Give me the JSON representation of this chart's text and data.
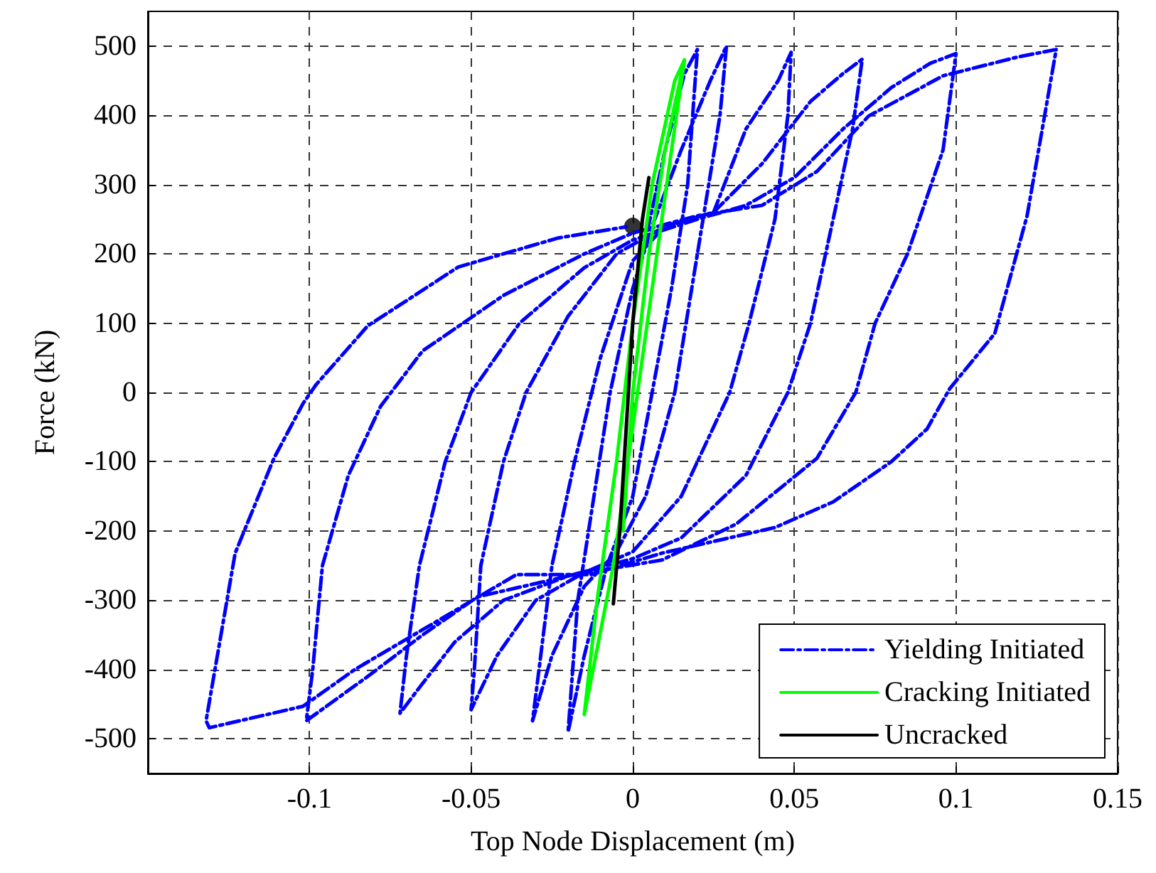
{
  "chart_data": {
    "type": "line",
    "xlabel": "Top Node Displacement (m)",
    "ylabel": "Force (kN)",
    "xlim": [
      -0.15,
      0.15
    ],
    "xticks": [
      -0.1,
      -0.05,
      0,
      0.05,
      0.1,
      0.15
    ],
    "ylim": [
      -550,
      550
    ],
    "yticks": [
      -500,
      -400,
      -300,
      -200,
      -100,
      0,
      100,
      200,
      300,
      400,
      500
    ],
    "grid": true,
    "legend": "bottom right",
    "marker": "none",
    "series": [
      {
        "name": "Yielding Initiated",
        "color": "#0000ff",
        "line_style": "dashdot",
        "x": [
          0.003,
          0.01,
          0.016,
          0.02,
          0.017,
          0.012,
          0.006,
          0,
          -0.008,
          -0.015,
          -0.02,
          -0.017,
          -0.012,
          -0.007,
          0,
          0.006,
          0.015,
          0.024,
          0.029,
          0.027,
          0.02,
          0.013,
          0.004,
          -0.005,
          -0.015,
          -0.025,
          -0.031,
          -0.029,
          -0.025,
          -0.018,
          -0.01,
          0,
          0.01,
          0.025,
          0.035,
          0.045,
          0.049,
          0.048,
          0.044,
          0.036,
          0.03,
          0.015,
          0,
          -0.015,
          -0.03,
          -0.042,
          -0.05,
          -0.049,
          -0.047,
          -0.04,
          -0.033,
          -0.02,
          -0.005,
          0.01,
          0.025,
          0.04,
          0.055,
          0.065,
          0.071,
          0.068,
          0.062,
          0.055,
          0.048,
          0.035,
          0.015,
          0,
          -0.02,
          -0.04,
          -0.055,
          -0.065,
          -0.072,
          -0.07,
          -0.066,
          -0.058,
          -0.05,
          -0.035,
          -0.015,
          0,
          0.02,
          0.035,
          0.05,
          0.065,
          0.08,
          0.092,
          0.1,
          0.096,
          0.085,
          0.075,
          0.069,
          0.057,
          0.032,
          0.009,
          -0.018,
          -0.048,
          -0.065,
          -0.082,
          -0.101,
          -0.099,
          -0.096,
          -0.088,
          -0.078,
          -0.065,
          -0.04,
          -0.015,
          0,
          0.02,
          0.04,
          0.057,
          0.073,
          0.096,
          0.119,
          0.131,
          0.122,
          0.112,
          0.098,
          0.091,
          0.08,
          0.062,
          0.044,
          0.009,
          -0.013,
          -0.036,
          -0.059,
          -0.086,
          -0.102,
          -0.131,
          -0.132,
          -0.123,
          -0.111,
          -0.102,
          -0.098,
          -0.082,
          -0.054,
          -0.023,
          -0.002
        ],
        "values": [
          200,
          350,
          460,
          495,
          300,
          150,
          0,
          -150,
          -250,
          -380,
          -490,
          -300,
          -150,
          0,
          150,
          240,
          350,
          450,
          500,
          400,
          200,
          0,
          -150,
          -230,
          -280,
          -380,
          -474,
          -400,
          -250,
          -100,
          50,
          190,
          240,
          260,
          380,
          450,
          491,
          400,
          250,
          100,
          0,
          -150,
          -230,
          -260,
          -300,
          -380,
          -458,
          -400,
          -250,
          -100,
          0,
          110,
          200,
          240,
          260,
          330,
          420,
          460,
          481,
          380,
          250,
          100,
          0,
          -120,
          -210,
          -240,
          -265,
          -300,
          -360,
          -420,
          -463,
          -380,
          -250,
          -100,
          0,
          100,
          180,
          220,
          250,
          270,
          310,
          380,
          440,
          475,
          489,
          350,
          200,
          100,
          0,
          -95,
          -190,
          -242,
          -263,
          -295,
          -350,
          -410,
          -474,
          -400,
          -250,
          -120,
          -20,
          60,
          140,
          200,
          230,
          255,
          270,
          319,
          399,
          457,
          484,
          495,
          255,
          85,
          5,
          -53,
          -100,
          -158,
          -195,
          -232,
          -263,
          -263,
          -326,
          -400,
          -453,
          -484,
          -474,
          -232,
          -95,
          -16,
          11,
          96,
          181,
          223,
          239
        ]
      },
      {
        "name": "Cracking Initiated",
        "color": "#00ff00",
        "line_style": "solid",
        "x": [
          -0.003,
          0,
          0.005,
          0.01,
          0.016,
          0.012,
          0.006,
          0,
          -0.006,
          -0.015,
          -0.011,
          -0.005,
          0,
          0.006,
          0.013,
          0.016
        ],
        "values": [
          -200,
          0,
          200,
          350,
          480,
          350,
          150,
          -50,
          -250,
          -465,
          -300,
          -100,
          100,
          300,
          450,
          480
        ]
      },
      {
        "name": "Uncracked",
        "color": "#000000",
        "line_style": "solid",
        "x": [
          -0.006,
          -0.004,
          -0.002,
          0,
          0.002,
          0.003,
          0.005
        ],
        "values": [
          -305,
          -200,
          -50,
          100,
          200,
          250,
          310
        ]
      },
      {
        "type": "scatter",
        "color": "#000000",
        "marker": "circle",
        "x": [
          0
        ],
        "values": [
          240
        ]
      }
    ]
  }
}
